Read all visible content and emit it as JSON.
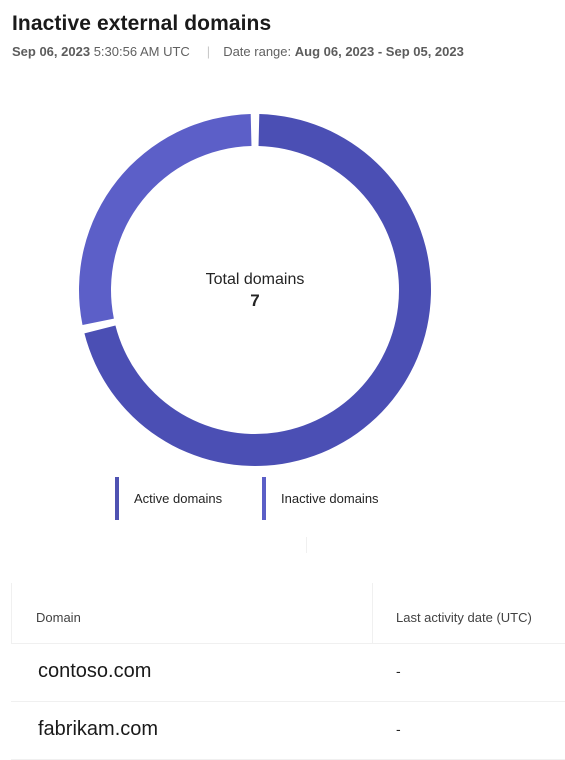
{
  "header": {
    "title": "Inactive external domains",
    "snapshot_date": "Sep 06, 2023",
    "snapshot_time": "5:30:56 AM UTC",
    "date_range_label": "Date range:",
    "date_range_value": "Aug 06, 2023 - Sep 05, 2023"
  },
  "chart_data": {
    "type": "pie",
    "donut": true,
    "center_label": "Total domains",
    "center_value": "7",
    "series": [
      {
        "name": "Active domains",
        "value": 2,
        "color": "#5c5fc8"
      },
      {
        "name": "Inactive domains",
        "value": 5,
        "color": "#4b4fb4"
      }
    ],
    "legend_placement": "bottom"
  },
  "legend": {
    "items": [
      {
        "label": "Active domains",
        "color": "#4f52b2"
      },
      {
        "label": "Inactive domains",
        "color": "#5b5fc7"
      }
    ]
  },
  "table": {
    "headers": {
      "domain": "Domain",
      "last_activity": "Last activity date (UTC)"
    },
    "rows": [
      {
        "domain": "contoso.com",
        "last_activity": "-"
      },
      {
        "domain": "fabrikam.com",
        "last_activity": "-"
      }
    ]
  }
}
